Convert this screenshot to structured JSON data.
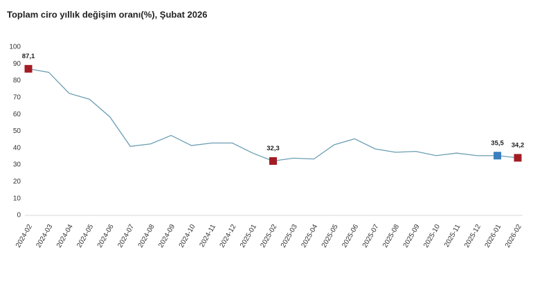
{
  "chart_data": {
    "type": "line",
    "title": "Toplam ciro yıllık değişim oranı(%), Şubat 2026",
    "categories": [
      "2024-02",
      "2024-03",
      "2024-04",
      "2024-05",
      "2024-06",
      "2024-07",
      "2024-08",
      "2024-09",
      "2024-10",
      "2024-11",
      "2024-12",
      "2025-01",
      "2025-02",
      "2025-03",
      "2025-04",
      "2025-05",
      "2025-06",
      "2025-07",
      "2025-08",
      "2025-09",
      "2025-10",
      "2025-11",
      "2025-12",
      "2026-01",
      "2026-02"
    ],
    "series": [
      {
        "color": "#6a9db3",
        "values": [
          87.1,
          85,
          72.5,
          69,
          58.5,
          41,
          42.5,
          47.5,
          41.5,
          43,
          43,
          37,
          32.3,
          34,
          33.5,
          42,
          45.5,
          39.5,
          37.5,
          38,
          35.5,
          37,
          35.5,
          35.5,
          34.2
        ],
        "value_labels": [
          "87,1",
          null,
          null,
          null,
          null,
          null,
          null,
          null,
          null,
          null,
          null,
          null,
          "32,3",
          null,
          null,
          null,
          null,
          null,
          null,
          null,
          null,
          null,
          null,
          "35,5",
          "34,2"
        ],
        "marker_colors": [
          "#a31c24",
          null,
          null,
          null,
          null,
          null,
          null,
          null,
          null,
          null,
          null,
          null,
          "#a31c24",
          null,
          null,
          null,
          null,
          null,
          null,
          null,
          null,
          null,
          null,
          "#3a7fbf",
          "#a31c24"
        ]
      }
    ],
    "ylim": [
      0,
      100
    ],
    "yticks": [
      0,
      10,
      20,
      30,
      40,
      50,
      60,
      70,
      80,
      90,
      100
    ],
    "grid": false
  }
}
